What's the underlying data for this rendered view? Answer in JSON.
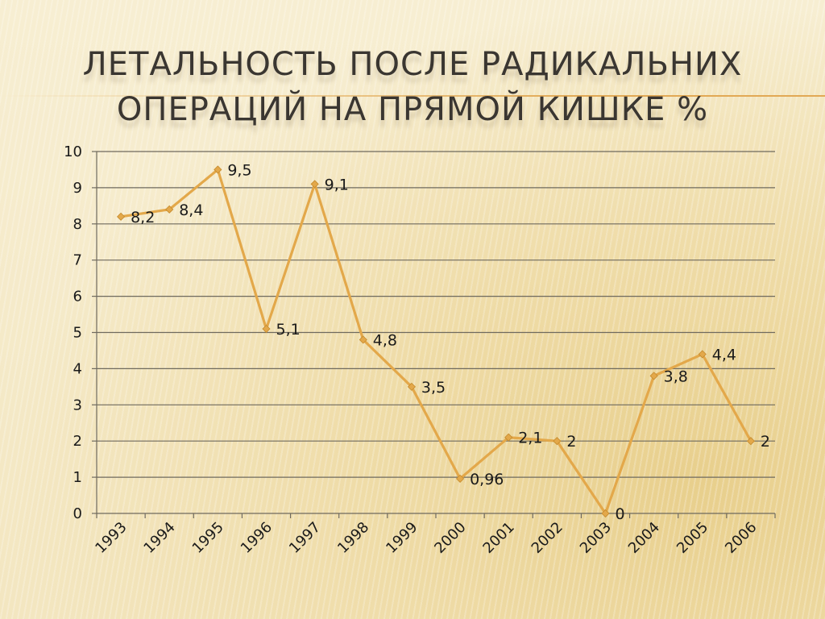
{
  "slide": {
    "title_line1": "ЛЕТАЛЬНОСТЬ ПОСЛЕ РАДИКАЛЬНИХ",
    "title_line2": "ОПЕРАЦИЙ НА ПРЯМОЙ КИШКЕ %"
  },
  "chart_data": {
    "type": "line",
    "title": "ЛЕТАЛЬНОСТЬ ПОСЛЕ РАДИКАЛЬНИХ ОПЕРАЦИЙ НА ПРЯМОЙ КИШКЕ %",
    "categories": [
      "1993",
      "1994",
      "1995",
      "1996",
      "1997",
      "1998",
      "1999",
      "2000",
      "2001",
      "2002",
      "2003",
      "2004",
      "2005",
      "2006"
    ],
    "series": [
      {
        "values": [
          8.2,
          8.4,
          9.5,
          5.1,
          9.1,
          4.8,
          3.5,
          0.96,
          2.1,
          2,
          0,
          3.8,
          4.4,
          2
        ],
        "labels": [
          "8,2",
          "8,4",
          "9,5",
          "5,1",
          "9,1",
          "4,8",
          "3,5",
          "0,96",
          "2,1",
          "2",
          "0",
          "3,8",
          "4,4",
          "2"
        ],
        "color": "#e3a84a"
      }
    ],
    "y_ticks": [
      "0",
      "1",
      "2",
      "3",
      "4",
      "5",
      "6",
      "7",
      "8",
      "9",
      "10"
    ],
    "ylim": [
      0,
      10
    ],
    "xlabel": "",
    "ylabel": "",
    "grid": true,
    "legend": "none"
  }
}
